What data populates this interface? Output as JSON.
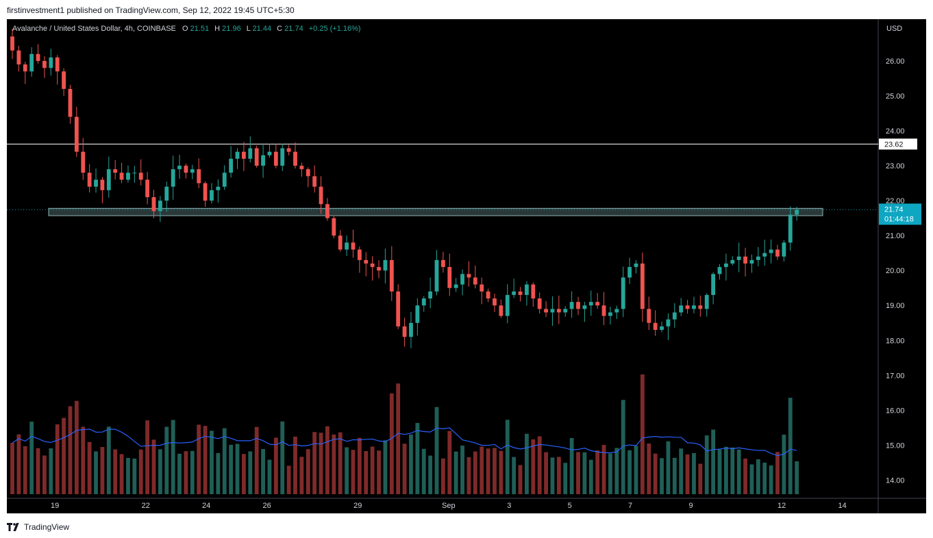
{
  "header": {
    "published_text": "firstinvestment1 published on TradingView.com, Sep 12, 2022 19:45 UTC+5:30"
  },
  "legend": {
    "symbol": "Avalanche / United States Dollar, 4h, COINBASE",
    "o_label": "O",
    "o_value": "21.51",
    "h_label": "H",
    "h_value": "21.96",
    "l_label": "L",
    "l_value": "21.44",
    "c_label": "C",
    "c_value": "21.74",
    "change": "+0.25 (+1.16%)"
  },
  "price_axis": {
    "currency": "USD",
    "current_price_label": "21.74",
    "countdown_label": "01:44:18",
    "resistance_label": "23.62"
  },
  "footer": {
    "brand": "TradingView"
  },
  "colors": {
    "up": "#26a69a",
    "down": "#ef5350",
    "up_volume": "#1f5f57",
    "down_volume": "#7f2a2a",
    "volume_ma": "#2962ff",
    "background": "#000000",
    "axis_text": "#d1d4dc",
    "current_price": "#0fa6c2"
  },
  "chart_data": {
    "type": "candlestick",
    "title": "Avalanche / United States Dollar, 4h, COINBASE",
    "y_range": [
      13.4,
      27.0
    ],
    "y_ticks": [
      "26.00",
      "25.00",
      "24.00",
      "23.00",
      "22.00",
      "21.00",
      "20.00",
      "19.00",
      "18.00",
      "17.00",
      "16.00",
      "15.00",
      "14.00"
    ],
    "x_range": [
      17.55,
      15.05
    ],
    "x_ticks": [
      {
        "label": "19",
        "pos": 19
      },
      {
        "label": "22",
        "pos": 22
      },
      {
        "label": "24",
        "pos": 24
      },
      {
        "label": "26",
        "pos": 26
      },
      {
        "label": "29",
        "pos": 29
      },
      {
        "label": "Sep",
        "pos": 32
      },
      {
        "label": "3",
        "pos": 34
      },
      {
        "label": "5",
        "pos": 36
      },
      {
        "label": "7",
        "pos": 38
      },
      {
        "label": "9",
        "pos": 40
      },
      {
        "label": "12",
        "pos": 43
      },
      {
        "label": "14",
        "pos": 45
      }
    ],
    "resistance_level": 23.62,
    "support_zone": [
      21.57,
      21.78
    ],
    "current_price": 21.74,
    "candles_4h_open_close_seq": [
      26.7,
      26.3,
      25.9,
      25.7,
      26.2,
      26.0,
      25.8,
      26.1,
      25.7,
      25.2,
      24.4,
      23.4,
      22.8,
      22.4,
      22.6,
      22.3,
      22.9,
      22.8,
      22.6,
      22.8,
      22.8,
      22.6,
      22.1,
      21.7,
      22.0,
      22.4,
      22.9,
      23.0,
      22.8,
      22.9,
      22.5,
      22.0,
      22.3,
      22.4,
      22.8,
      23.2,
      23.4,
      23.2,
      23.5,
      23.0,
      23.3,
      23.4,
      23.0,
      23.5,
      23.4,
      23.0,
      22.9,
      22.7,
      22.4,
      21.9,
      21.5,
      21.0,
      20.6,
      20.8,
      20.6,
      20.3,
      20.2,
      20.1,
      20.0,
      20.3,
      19.4,
      18.4,
      18.1,
      18.5,
      19.0,
      19.2,
      19.4,
      20.3,
      20.1,
      19.5,
      19.6,
      19.9,
      19.8,
      19.6,
      19.4,
      19.2,
      19.0,
      18.7,
      19.3,
      19.4,
      19.3,
      19.6,
      19.2,
      18.9,
      18.8,
      18.9,
      18.8,
      18.9,
      19.1,
      18.9,
      19.0,
      19.1,
      19.0,
      18.7,
      18.8,
      18.9,
      19.8,
      20.1,
      20.2,
      18.9,
      18.5,
      18.3,
      18.4,
      18.6,
      18.8,
      19.0,
      18.9,
      19.0,
      18.9,
      19.3,
      19.9,
      20.1,
      20.2,
      20.3,
      20.4,
      20.2,
      20.3,
      20.4,
      20.5,
      20.6,
      20.4,
      20.8,
      21.6,
      21.74
    ],
    "series": [
      {
        "name": "Volume",
        "type": "bar"
      },
      {
        "name": "Volume MA",
        "type": "line"
      }
    ]
  }
}
